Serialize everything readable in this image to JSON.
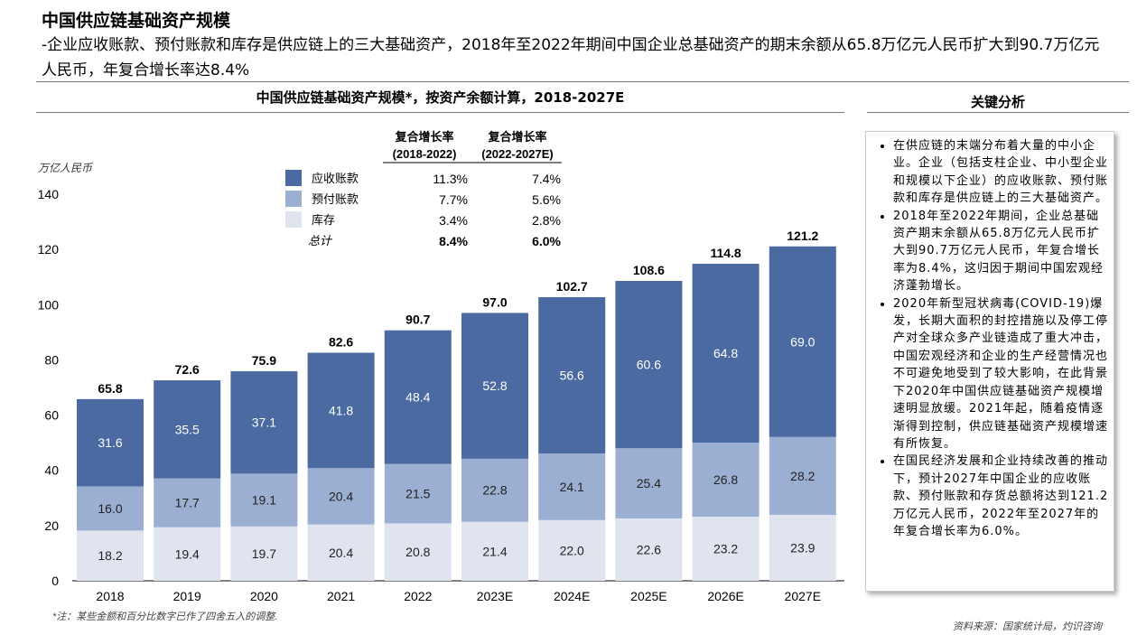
{
  "header": {
    "title": "中国供应链基础资产规模",
    "subtitle": "-企业应收账款、预付账款和库存是供应链上的三大基础资产，2018年至2022年期间中国企业总基础资产的期末余额从65.8万亿元人民币扩大到90.7万亿元人民币，年复合增长率达8.4%"
  },
  "analysis": {
    "title": "关键分析",
    "bullets": [
      "在供应链的末端分布着大量的中小企业。企业（包括支柱企业、中小型企业和规模以下企业）的应收账款、预付账款和库存是供应链上的三大基础资产。",
      "2018年至2022年期间，企业总基础资产期末余额从65.8万亿元人民币扩大到90.7万亿元人民币，年复合增长率为8.4%，这归因于期间中国宏观经济蓬勃增长。",
      "2020年新型冠状病毒(COVID-19)爆发，长期大面积的封控措施以及停工停产对全球众多产业链造成了重大冲击，中国宏观经济和企业的生产经营情况也不可避免地受到了较大影响，在此背景下2020年中国供应链基础资产规模增速明显放缓。2021年起，随着疫情逐渐得到控制，供应链基础资产规模增速有所恢复。",
      "在国民经济发展和企业持续改善的推动下，预计2027年中国企业的应收账款、预付账款和存货总额将达到121.2万亿元人民币，2022年至2027年的年复合增长率为6.0%。"
    ]
  },
  "footnote": "*注：某些金额和百分比数字已作了四舍五入的调整.",
  "source": "资料来源：国家统计局，灼识咨询",
  "chart_data": {
    "type": "bar",
    "stacked": true,
    "title": "中国供应链基础资产规模*，按资产余额计算，2018-2027E",
    "ylabel": "万亿人民币",
    "ylim": [
      0,
      140
    ],
    "yticks": [
      0,
      20,
      40,
      60,
      80,
      100,
      120,
      140
    ],
    "grid": false,
    "categories": [
      "2018",
      "2019",
      "2020",
      "2021",
      "2022",
      "2023E",
      "2024E",
      "2025E",
      "2026E",
      "2027E"
    ],
    "series": [
      {
        "name": "库存",
        "color": "#dfe4ef",
        "values": [
          18.2,
          19.4,
          19.7,
          20.4,
          20.8,
          21.4,
          22.0,
          22.6,
          23.2,
          23.9
        ]
      },
      {
        "name": "预付账款",
        "color": "#9bafd2",
        "values": [
          16.0,
          17.7,
          19.1,
          20.4,
          21.5,
          22.8,
          24.1,
          25.4,
          26.8,
          28.2
        ]
      },
      {
        "name": "应收账款",
        "color": "#4a6aa1",
        "values": [
          31.6,
          35.5,
          37.1,
          41.8,
          48.4,
          52.8,
          56.6,
          60.6,
          64.8,
          69.0
        ]
      }
    ],
    "totals": [
      "65.8",
      "72.6",
      "75.9",
      "82.6",
      "90.7",
      "97.0",
      "102.7",
      "108.6",
      "114.8",
      "121.2"
    ],
    "legend": {
      "placement": "top-left",
      "headers": [
        "复合增长率\n(2018-2022)",
        "复合增长率\n(2022-2027E)"
      ],
      "header1_line1": "复合增长率",
      "header1_line2": "(2018-2022)",
      "header2_line1": "复合增长率",
      "header2_line2": "(2022-2027E)",
      "rows": [
        {
          "name": "应收账款",
          "color": "#4a6aa1",
          "cagr1": "11.3%",
          "cagr2": "7.4%"
        },
        {
          "name": "预付账款",
          "color": "#9bafd2",
          "cagr1": "7.7%",
          "cagr2": "5.6%"
        },
        {
          "name": "库存",
          "color": "#dfe4ef",
          "cagr1": "3.4%",
          "cagr2": "2.8%"
        },
        {
          "name": "总计",
          "color": "",
          "cagr1": "8.4%",
          "cagr2": "6.0%"
        }
      ]
    }
  }
}
